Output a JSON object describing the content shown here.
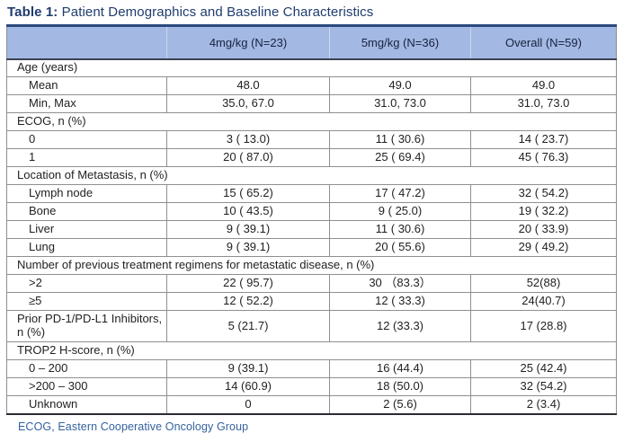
{
  "title": {
    "prefix": "Table 1:",
    "text": " Patient Demographics and Baseline Characteristics"
  },
  "colors": {
    "header_bg": "#a3b8e2",
    "header_text": "#17233f",
    "title_color": "#1f3c6e",
    "footer_color": "#35629e",
    "grid": "#8f8f8f",
    "navy_border": "#2c4a7e",
    "dark_border": "#3d4152",
    "body_text": "#1f1f1f"
  },
  "footnote": "ECOG, Eastern Cooperative Oncology Group",
  "chart_data": {
    "type": "table",
    "title": "Table 1: Patient Demographics and Baseline Characteristics",
    "columns": [
      "",
      "4mg/kg (N=23)",
      "5mg/kg (N=36)",
      "Overall (N=59)"
    ],
    "rows": [
      {
        "type": "section",
        "label": "Age (years)"
      },
      {
        "type": "data",
        "indent": true,
        "label": "Mean",
        "values": [
          "48.0",
          "49.0",
          "49.0"
        ]
      },
      {
        "type": "data",
        "indent": true,
        "label": "Min, Max",
        "values": [
          "35.0, 67.0",
          "31.0, 73.0",
          "31.0, 73.0"
        ]
      },
      {
        "type": "section",
        "label": "ECOG, n (%)"
      },
      {
        "type": "data",
        "indent": true,
        "label": "0",
        "values": [
          "3 ( 13.0)",
          "11 ( 30.6)",
          "14 ( 23.7)"
        ]
      },
      {
        "type": "data",
        "indent": true,
        "label": "1",
        "values": [
          "20 ( 87.0)",
          "25 ( 69.4)",
          "45 ( 76.3)"
        ]
      },
      {
        "type": "section",
        "label": "Location of Metastasis, n (%)"
      },
      {
        "type": "data",
        "indent": true,
        "label": "Lymph node",
        "values": [
          "15 ( 65.2)",
          "17 ( 47.2)",
          "32 ( 54.2)"
        ]
      },
      {
        "type": "data",
        "indent": true,
        "label": "Bone",
        "values": [
          "10 ( 43.5)",
          "9 ( 25.0)",
          "19 ( 32.2)"
        ]
      },
      {
        "type": "data",
        "indent": true,
        "label": "Liver",
        "values": [
          "9 ( 39.1)",
          "11 ( 30.6)",
          "20 ( 33.9)"
        ]
      },
      {
        "type": "data",
        "indent": true,
        "label": "Lung",
        "values": [
          "9 ( 39.1)",
          "20 ( 55.6)",
          "29 ( 49.2)"
        ]
      },
      {
        "type": "section",
        "label": "Number of previous treatment regimens for metastatic disease, n (%)"
      },
      {
        "type": "data",
        "indent": true,
        "label": ">2",
        "values": [
          "22 ( 95.7)",
          "30 （83.3）",
          "52(88)"
        ]
      },
      {
        "type": "data",
        "indent": true,
        "label": "≥5",
        "values": [
          "12 ( 52.2)",
          "12 ( 33.3)",
          "24(40.7)"
        ]
      },
      {
        "type": "data",
        "indent": false,
        "tall": true,
        "label": "Prior PD-1/PD-L1 Inhibitors, n (%)",
        "values": [
          "5 (21.7)",
          "12 (33.3)",
          "17 (28.8)"
        ]
      },
      {
        "type": "section",
        "label": "TROP2  H-score, n (%)"
      },
      {
        "type": "data",
        "indent": true,
        "label": "0 – 200",
        "values": [
          "9 (39.1)",
          "16 (44.4)",
          "25 (42.4)"
        ]
      },
      {
        "type": "data",
        "indent": true,
        "label": ">200 – 300",
        "values": [
          "14 (60.9)",
          "18 (50.0)",
          "32 (54.2)"
        ]
      },
      {
        "type": "data",
        "indent": true,
        "label": "Unknown",
        "values": [
          "0",
          "2 (5.6)",
          "2 (3.4)"
        ]
      }
    ]
  }
}
